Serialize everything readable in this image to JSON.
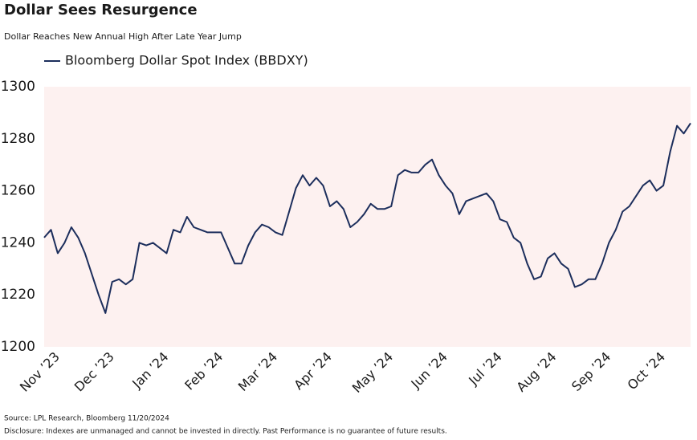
{
  "title": "Dollar Sees Resurgence",
  "subtitle": "Dollar Reaches New Annual High After Late Year Jump",
  "source": "Source: LPL Research, Bloomberg 11/20/2024",
  "disclosure": "Disclosure: Indexes are unmanaged and cannot be invested in directly. Past Performance is no guarantee of future results.",
  "chart_data": {
    "type": "line",
    "categories": [
      null,
      null,
      "Nov ’23",
      null,
      null,
      null,
      null,
      null,
      null,
      null,
      "Dec ’23",
      null,
      null,
      null,
      null,
      null,
      null,
      null,
      "Jan ’24",
      null,
      null,
      null,
      null,
      null,
      null,
      null,
      "Feb ’24",
      null,
      null,
      null,
      null,
      null,
      null,
      null,
      "Mar ’24",
      null,
      null,
      null,
      null,
      null,
      null,
      null,
      "Apr ’24",
      null,
      null,
      null,
      null,
      null,
      null,
      null,
      null,
      "May ’24",
      null,
      null,
      null,
      null,
      null,
      null,
      null,
      "Jun ’24",
      null,
      null,
      null,
      null,
      null,
      null,
      null,
      "Jul ’24",
      null,
      null,
      null,
      null,
      null,
      null,
      null,
      "Aug ’24",
      null,
      null,
      null,
      null,
      null,
      null,
      null,
      "Sep ’24",
      null,
      null,
      null,
      null,
      null,
      null,
      null,
      "Oct ’24",
      null,
      null,
      null,
      null
    ],
    "series": [
      {
        "name": "Bloomberg Dollar Spot Index (BBDXY)",
        "color": "#1c2e5c",
        "values": [
          1242,
          1245,
          1236,
          1240,
          1246,
          1242,
          1236,
          1228,
          1220,
          1213,
          1225,
          1226,
          1224,
          1226,
          1240,
          1239,
          1240,
          1238,
          1236,
          1245,
          1244,
          1250,
          1246,
          1245,
          1244,
          1244,
          1244,
          1238,
          1232,
          1232,
          1239,
          1244,
          1247,
          1246,
          1244,
          1243,
          1252,
          1261,
          1266,
          1262,
          1265,
          1262,
          1254,
          1256,
          1253,
          1246,
          1248,
          1251,
          1255,
          1253,
          1253,
          1254,
          1266,
          1268,
          1267,
          1267,
          1270,
          1272,
          1266,
          1262,
          1259,
          1251,
          1256,
          1257,
          1258,
          1259,
          1256,
          1249,
          1248,
          1242,
          1240,
          1232,
          1226,
          1227,
          1234,
          1236,
          1232,
          1230,
          1223,
          1224,
          1226,
          1226,
          1232,
          1240,
          1245,
          1252,
          1254,
          1258,
          1262,
          1264,
          1260,
          1262,
          1275,
          1285,
          1282,
          1286
        ]
      }
    ],
    "ylim": [
      1200,
      1300
    ],
    "yticks": [
      1200,
      1220,
      1240,
      1260,
      1280,
      1300
    ],
    "grid": false,
    "plot_background": "#fdf1f0",
    "legend": "top"
  }
}
